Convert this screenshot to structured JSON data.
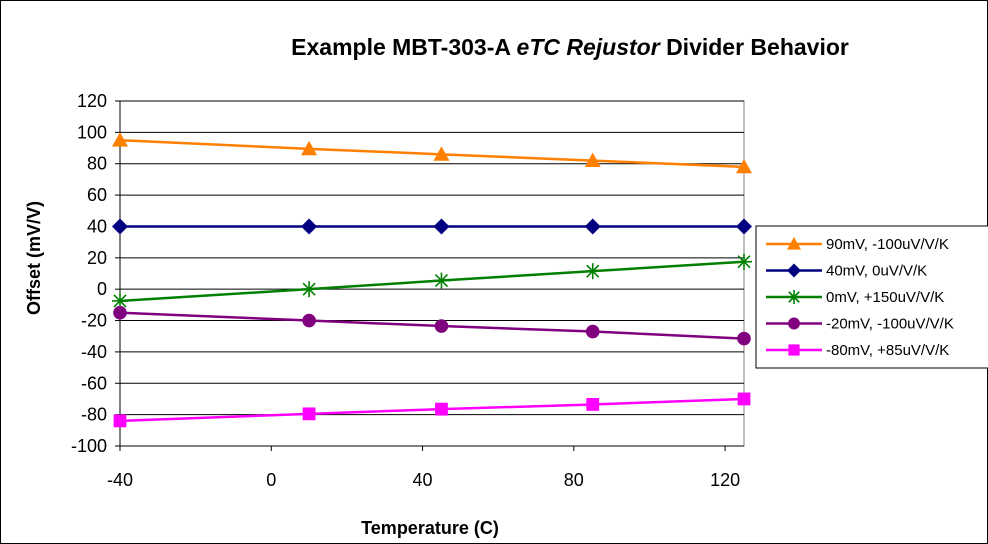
{
  "chart_data": {
    "type": "line",
    "title": {
      "part1": "Example MBT-303-A",
      "part2": "eTC Rejustor",
      "part3": "Divider Behavior"
    },
    "xlabel": "Temperature (C)",
    "ylabel": "Offset (mV/V)",
    "xlim": [
      -40,
      125
    ],
    "ylim": [
      -100,
      120
    ],
    "xticks": [
      -40,
      0,
      40,
      80,
      120
    ],
    "yticks": [
      120,
      100,
      80,
      60,
      40,
      20,
      0,
      -20,
      -40,
      -60,
      -80,
      -100
    ],
    "grid": "horizontal",
    "legend_position": "right",
    "x": [
      -40,
      10,
      45,
      85,
      125
    ],
    "series": [
      {
        "name": "90mV, -100uV/V/K",
        "color": "#FF7F00",
        "marker": "triangle",
        "values": [
          95,
          89.5,
          86,
          82,
          78
        ]
      },
      {
        "name": "40mV, 0uV/V/K",
        "color": "#000080",
        "marker": "diamond",
        "values": [
          40,
          40,
          40,
          40,
          40
        ]
      },
      {
        "name": "0mV, +150uV/V/K",
        "color": "#008000",
        "marker": "asterisk",
        "values": [
          -7.5,
          0,
          5.5,
          11.5,
          17.5
        ]
      },
      {
        "name": "-20mV, -100uV/V/K",
        "color": "#800080",
        "marker": "circle",
        "values": [
          -15,
          -20,
          -23.5,
          -27,
          -31.5
        ]
      },
      {
        "name": "-80mV, +85uV/V/K",
        "color": "#FF00FF",
        "marker": "square",
        "values": [
          -84,
          -79.5,
          -76.5,
          -73.5,
          -70
        ]
      }
    ]
  }
}
